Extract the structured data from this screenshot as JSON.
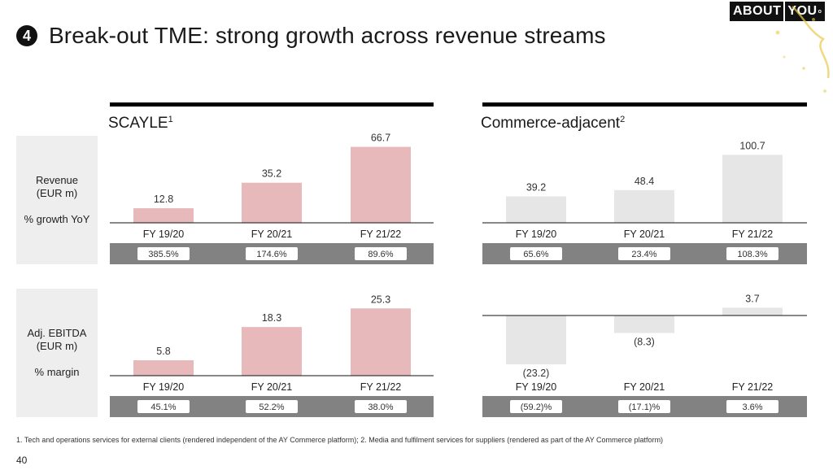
{
  "slide": {
    "badge": "4",
    "title": "Break-out TME: strong growth across revenue streams",
    "logo": {
      "left": "ABOUT",
      "right": "YOU",
      "mark": "o"
    },
    "row_labels": {
      "revenue": {
        "line1": "Revenue",
        "line2": "(EUR m)",
        "sub": "% growth YoY"
      },
      "ebitda": {
        "line1": "Adj. EBITDA",
        "line2": "(EUR m)",
        "sub": "% margin"
      }
    },
    "footnote": "1. Tech and operations services for external clients (rendered independent of the AY Commerce platform); 2. Media and fulfilment services for suppliers (rendered as part of the AY Commerce platform)",
    "page_number": "40"
  },
  "colors": {
    "scayle_bar": "#e8b9bb",
    "adjacent_bar": "#e6e6e6",
    "pill_strip": "#828282",
    "rule": "#000000"
  },
  "chart_data": [
    {
      "type": "bar",
      "group": "SCAYLE",
      "superscript": "1",
      "metric": "Revenue (EUR m)",
      "categories": [
        "FY 19/20",
        "FY 20/21",
        "FY 21/22"
      ],
      "values": [
        12.8,
        35.2,
        66.7
      ],
      "value_labels": [
        "12.8",
        "35.2",
        "66.7"
      ],
      "pill_title": "% growth YoY",
      "pills": [
        "385.5%",
        "174.6%",
        "89.6%"
      ],
      "ylim": [
        0,
        67
      ]
    },
    {
      "type": "bar",
      "group": "Commerce-adjacent",
      "superscript": "2",
      "metric": "Revenue (EUR m)",
      "categories": [
        "FY 19/20",
        "FY 20/21",
        "FY 21/22"
      ],
      "values": [
        39.2,
        48.4,
        100.7
      ],
      "value_labels": [
        "39.2",
        "48.4",
        "100.7"
      ],
      "pill_title": "% growth YoY",
      "pills": [
        "65.6%",
        "23.4%",
        "108.3%"
      ],
      "ylim": [
        0,
        101
      ]
    },
    {
      "type": "bar",
      "group": "SCAYLE",
      "metric": "Adj. EBITDA (EUR m)",
      "categories": [
        "FY 19/20",
        "FY 20/21",
        "FY 21/22"
      ],
      "values": [
        5.8,
        18.3,
        25.3
      ],
      "value_labels": [
        "5.8",
        "18.3",
        "25.3"
      ],
      "pill_title": "% margin",
      "pills": [
        "45.1%",
        "52.2%",
        "38.0%"
      ],
      "ylim": [
        0,
        26
      ]
    },
    {
      "type": "bar",
      "group": "Commerce-adjacent",
      "metric": "Adj. EBITDA (EUR m)",
      "categories": [
        "FY 19/20",
        "FY 20/21",
        "FY 21/22"
      ],
      "values": [
        -23.2,
        -8.3,
        3.7
      ],
      "value_labels": [
        "(23.2)",
        "(8.3)",
        "3.7"
      ],
      "pill_title": "% margin",
      "pills": [
        "(59.2)%",
        "(17.1)%",
        "3.6%"
      ],
      "ylim": [
        -24,
        4
      ]
    }
  ]
}
